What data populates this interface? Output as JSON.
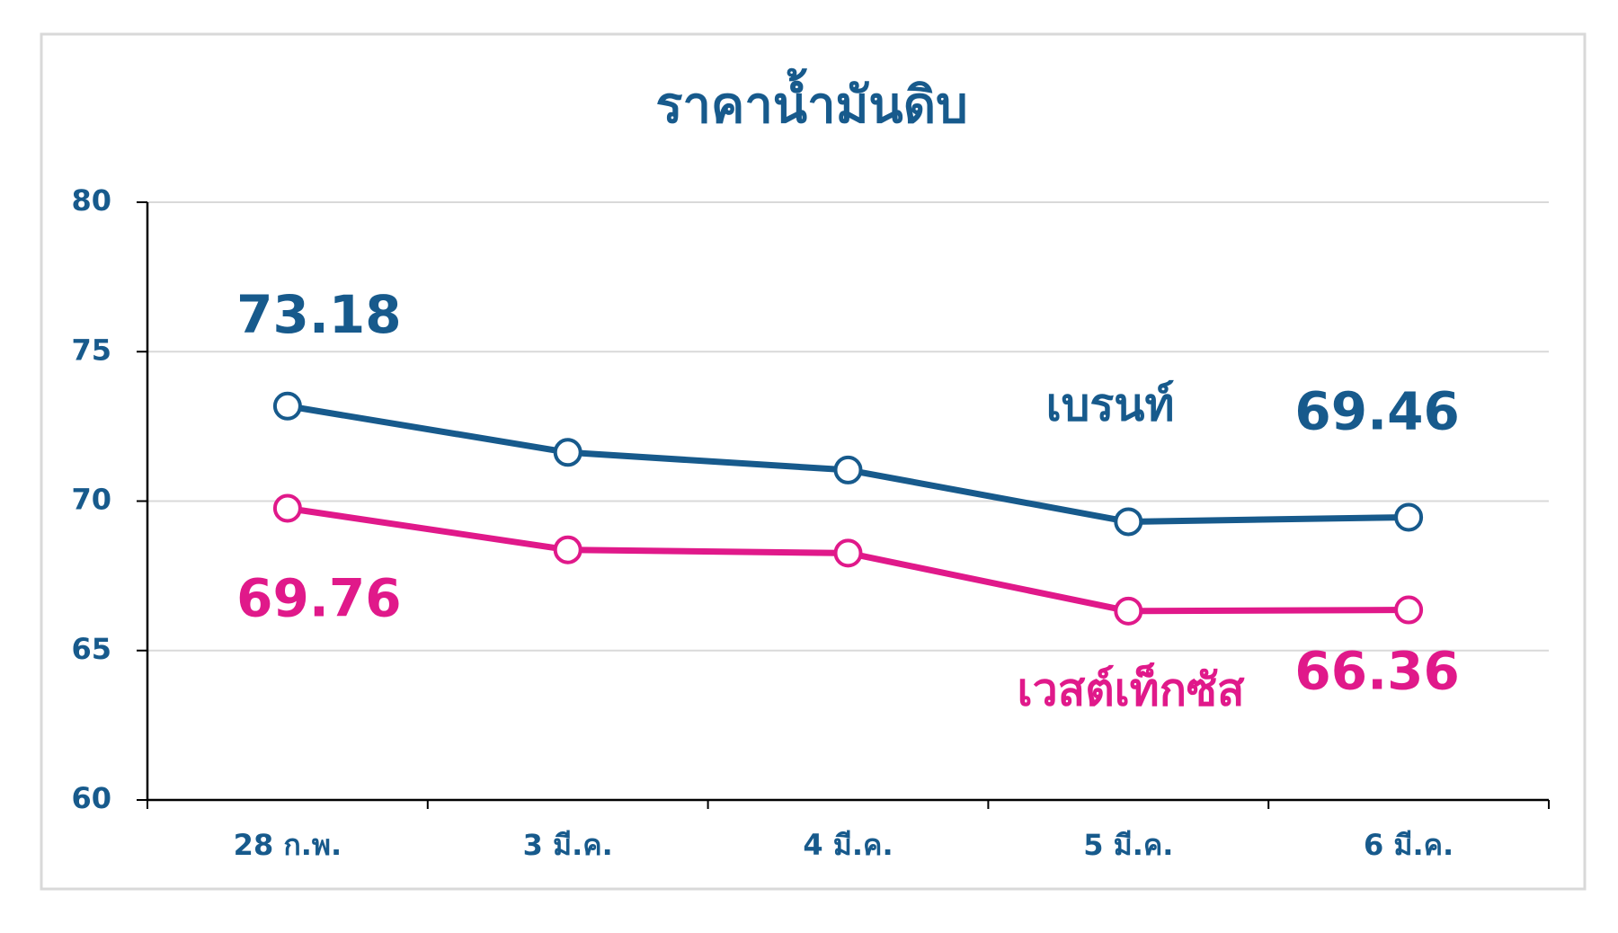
{
  "chart_data": {
    "type": "line",
    "title": "ราคาน้ำมันดิบ",
    "categories": [
      "28 ก.พ.",
      "3 มี.ค.",
      "4 มี.ค.",
      "5 มี.ค.",
      "6 มี.ค."
    ],
    "series": [
      {
        "name": "เบรนท์",
        "color": "#175a8c",
        "values": [
          73.18,
          71.63,
          71.04,
          69.31,
          69.46
        ]
      },
      {
        "name": "เวสต์เท็กซัส",
        "color": "#e0198a",
        "values": [
          69.76,
          68.37,
          68.26,
          66.32,
          66.36
        ]
      }
    ],
    "ylim": [
      60,
      80
    ],
    "yticks": [
      60,
      65,
      70,
      75,
      80
    ],
    "grid": true
  }
}
